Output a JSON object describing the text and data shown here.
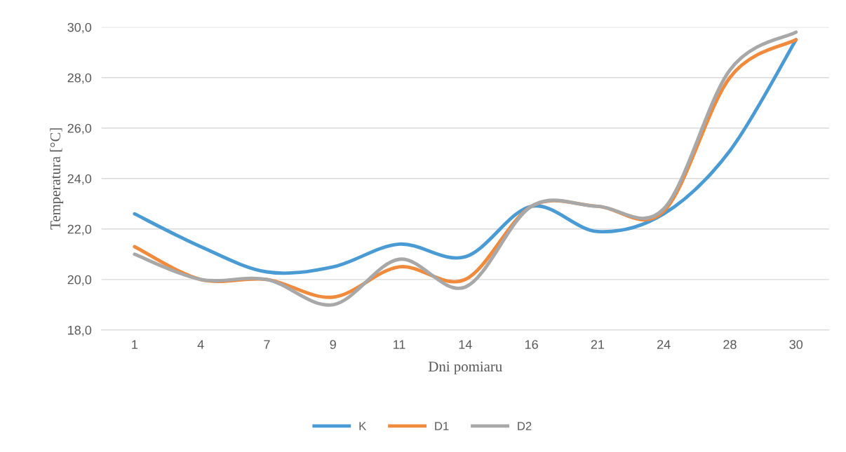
{
  "chart_data": {
    "type": "line",
    "xlabel": "Dni pomiaru",
    "ylabel": "Temperatura [°C]",
    "categories": [
      "1",
      "4",
      "7",
      "9",
      "11",
      "14",
      "16",
      "21",
      "24",
      "28",
      "30"
    ],
    "series": [
      {
        "name": "K",
        "color": "#4a9bd4",
        "values": [
          22.6,
          21.3,
          20.3,
          20.5,
          21.4,
          20.9,
          22.9,
          21.9,
          22.6,
          25.1,
          29.5
        ]
      },
      {
        "name": "D1",
        "color": "#f08a3c",
        "values": [
          21.3,
          20.0,
          20.0,
          19.3,
          20.5,
          20.0,
          22.9,
          22.9,
          22.7,
          28.0,
          29.5
        ]
      },
      {
        "name": "D2",
        "color": "#a8a8a8",
        "values": [
          21.0,
          20.0,
          20.0,
          19.0,
          20.8,
          19.7,
          22.9,
          22.9,
          22.8,
          28.3,
          29.8
        ]
      }
    ],
    "ylim": [
      18.0,
      30.0
    ],
    "yticks": [
      {
        "value": 18,
        "label": "18,0"
      },
      {
        "value": 20,
        "label": "20,0"
      },
      {
        "value": 22,
        "label": "22,0"
      },
      {
        "value": 24,
        "label": "24,0"
      },
      {
        "value": 26,
        "label": "26,0"
      },
      {
        "value": 28,
        "label": "28,0"
      },
      {
        "value": 30,
        "label": "30,0"
      }
    ],
    "grid": "y",
    "legend": "bottom",
    "marker": "none",
    "line_style": "solid"
  }
}
